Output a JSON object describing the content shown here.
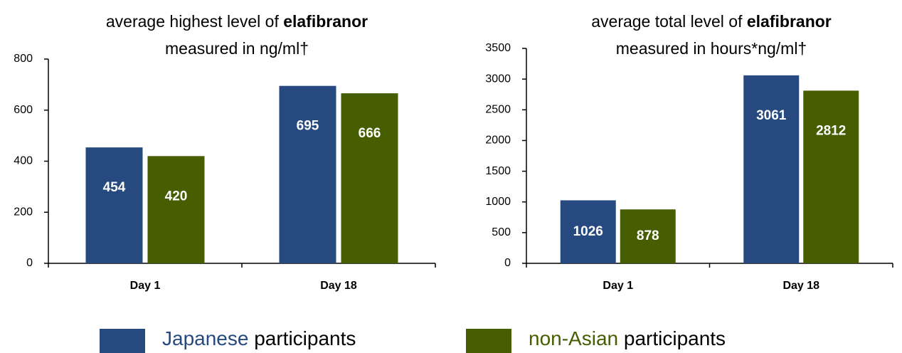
{
  "chart_data": [
    {
      "type": "bar",
      "title": [
        [
          {
            "text": "average highest level of ",
            "bold": false
          },
          {
            "text": "elafibranor",
            "bold": true
          }
        ],
        [
          {
            "text": "measured in ng/ml†",
            "bold": false
          }
        ]
      ],
      "categories": [
        "Day 1",
        "Day 18"
      ],
      "series": [
        {
          "name": "Japanese participants",
          "color": "#264a80",
          "values": [
            454,
            695
          ]
        },
        {
          "name": "non-Asian participants",
          "color": "#465e00",
          "values": [
            420,
            666
          ]
        }
      ],
      "ylim": [
        0,
        800
      ],
      "yticks": [
        0,
        200,
        400,
        600,
        800
      ],
      "grid": false
    },
    {
      "type": "bar",
      "title": [
        [
          {
            "text": "average total level of ",
            "bold": false
          },
          {
            "text": "elafibranor",
            "bold": true
          }
        ],
        [
          {
            "text": "measured in hours*ng/ml†",
            "bold": false
          }
        ]
      ],
      "categories": [
        "Day 1",
        "Day 18"
      ],
      "series": [
        {
          "color": "#264a80",
          "values": [
            1026,
            3061
          ]
        },
        {
          "color": "#465e00",
          "values": [
            878,
            2812
          ]
        }
      ],
      "ylim": [
        0,
        3500
      ],
      "yticks": [
        0,
        500,
        1000,
        1500,
        2000,
        2500,
        3000,
        3500
      ],
      "grid": false
    }
  ]
}
